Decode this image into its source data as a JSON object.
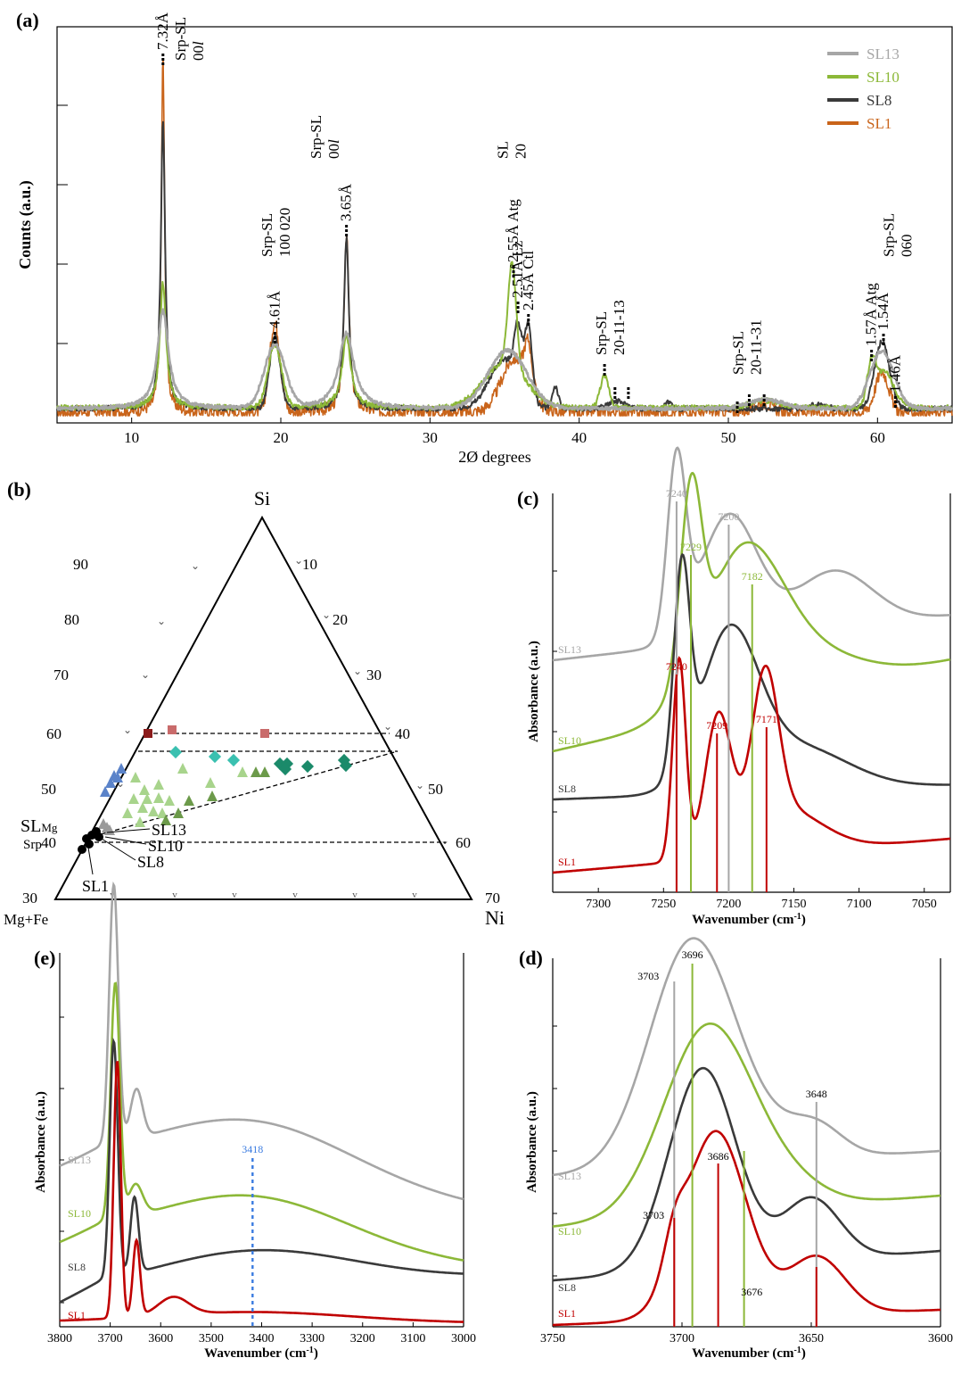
{
  "colors": {
    "SL13": "#a6a6a6",
    "SL10": "#8cb838",
    "SL8": "#3a3a3a",
    "SL1": "#c9641a",
    "SL1_ir": "#c00000",
    "dash_blue": "#3a7be0"
  },
  "chart_data": [
    {
      "panel": "(a)",
      "type": "line",
      "xlabel": "2Ø degrees",
      "ylabel": "Counts (a.u.)",
      "xlim": [
        5,
        65
      ],
      "xticks": [
        10,
        20,
        30,
        40,
        50,
        60
      ],
      "legend": [
        "SL13",
        "SL10",
        "SL8",
        "SL1"
      ],
      "legend_placement": "top-right",
      "peaks": [
        {
          "x": 12.1,
          "label": "7.32Å",
          "group": "Srp-SL\n00l"
        },
        {
          "x": 19.6,
          "label": "4.61Å",
          "group": "Srp-SL\n100 020"
        },
        {
          "x": 24.4,
          "label": "3.65Å",
          "group": "Srp-SL\n00l"
        },
        {
          "x": 35.6,
          "label": "2.55Å Atg",
          "group": "SL\n20"
        },
        {
          "x": 35.9,
          "label": "2.51Å Lz"
        },
        {
          "x": 36.6,
          "label": "2.45Å Ctl"
        },
        {
          "x": 41.7,
          "label": "",
          "group": "Srp-SL\n20-11-13"
        },
        {
          "x": 50.6,
          "label": "",
          "group": "Srp-SL\n20-11-31"
        },
        {
          "x": 59.6,
          "label": "1.57Å Atg",
          "group": "Srp-SL\n060"
        },
        {
          "x": 60.4,
          "label": "1.54Å"
        },
        {
          "x": 61.2,
          "label": "1.46Å"
        }
      ],
      "group_labels": [
        {
          "x": 13.6,
          "line1": "Srp-SL",
          "line2": "00l"
        },
        {
          "x": 19.4,
          "line1": "Srp-SL",
          "line2": "100 020"
        },
        {
          "x": 22.7,
          "line1": "Srp-SL",
          "line2": "00l"
        },
        {
          "x": 35.2,
          "line1": "SL",
          "line2": "20"
        },
        {
          "x": 41.8,
          "line1": "Srp-SL",
          "line2": "20-11-13"
        },
        {
          "x": 51.0,
          "line1": "Srp-SL",
          "line2": "20-11-31"
        },
        {
          "x": 61.1,
          "line1": "Srp-SL",
          "line2": "060"
        }
      ]
    },
    {
      "panel": "(b)",
      "type": "scatter",
      "ternary_axes": {
        "top": "Si",
        "left": "Mg+Fe",
        "right": "Ni"
      },
      "left_ticks": [
        "30",
        "40",
        "50",
        "60",
        "70",
        "80",
        "90"
      ],
      "right_ticks": [
        "10",
        "20",
        "30",
        "40",
        "50",
        "60",
        "70"
      ],
      "labels": [
        "SLMg",
        "Srp",
        "SL13",
        "SL10",
        "SL8",
        "SL1"
      ]
    },
    {
      "panel": "(c)",
      "type": "line",
      "xlabel": "Wavenumber (cm-1)",
      "ylabel": "Absorbance (a.u.)",
      "xlim": [
        7335,
        7030
      ],
      "xticks": [
        7300,
        7250,
        7200,
        7150,
        7100,
        7050
      ],
      "series": [
        "SL13",
        "SL10",
        "SL8",
        "SL1"
      ],
      "annotations": [
        {
          "series": "SL13",
          "x": 7240,
          "text": "7240"
        },
        {
          "series": "SL13",
          "x": 7200,
          "text": "7200"
        },
        {
          "series": "SL10",
          "x": 7229,
          "text": "7229"
        },
        {
          "series": "SL10",
          "x": 7182,
          "text": "7182"
        },
        {
          "series": "SL1",
          "x": 7240,
          "text": "7240"
        },
        {
          "series": "SL1",
          "x": 7209,
          "text": "7209"
        },
        {
          "series": "SL1",
          "x": 7171,
          "text": "7171"
        }
      ]
    },
    {
      "panel": "(e)",
      "type": "line",
      "xlabel": "Wavenumber (cm-1)",
      "ylabel": "Absorbance (a.u.)",
      "xlim": [
        3800,
        3000
      ],
      "xticks": [
        3800,
        3700,
        3600,
        3500,
        3400,
        3300,
        3200,
        3100,
        3000
      ],
      "series": [
        "SL13",
        "SL10",
        "SL8",
        "SL1"
      ],
      "annotations": [
        {
          "x": 3418,
          "text": "3418"
        }
      ]
    },
    {
      "panel": "(d)",
      "type": "line",
      "xlabel": "Wavenumber (cm-1)",
      "ylabel": "Absorbance (a.u.)",
      "xlim": [
        3750,
        3600
      ],
      "xticks": [
        3750,
        3700,
        3650,
        3600
      ],
      "series": [
        "SL13",
        "SL10",
        "SL8",
        "SL1"
      ],
      "annotations": [
        {
          "x": 3703,
          "text": "3703"
        },
        {
          "x": 3696,
          "text": "3696"
        },
        {
          "x": 3686,
          "text": "3686"
        },
        {
          "x": 3676,
          "text": "3676"
        },
        {
          "x": 3648,
          "text": "3648"
        }
      ]
    }
  ],
  "panels": {
    "a": {
      "label": "(a)",
      "ylabel": "Counts (a.u.)",
      "xlabel": "2Ø degrees"
    },
    "b": {
      "label": "(b)",
      "top": "Si",
      "left": "Mg+Fe",
      "right": "Ni"
    },
    "c": {
      "label": "(c)",
      "ylabel": "Absorbance (a.u.)",
      "xlabel": "Wavenumber (cm",
      "xsup": "-1",
      "xend": ")"
    },
    "e": {
      "label": "(e)",
      "ylabel": "Absorbance (a.u.)",
      "xlabel": "Wavenumber (cm",
      "xsup": "-1",
      "xend": ")"
    },
    "d": {
      "label": "(d)",
      "ylabel": "Absorbance (a.u.)",
      "xlabel": "Wavenumber (cm",
      "xsup": "-1",
      "xend": ")"
    }
  },
  "series_names": {
    "SL13": "SL13",
    "SL10": "SL10",
    "SL8": "SL8",
    "SL1": "SL1"
  },
  "ternary": {
    "labels": {
      "slmg": "SL",
      "slmg_sub": "Mg",
      "srp": "Srp",
      "sl13": "SL13",
      "sl10": "SL10",
      "sl8": "SL8",
      "sl1": "SL1"
    }
  }
}
